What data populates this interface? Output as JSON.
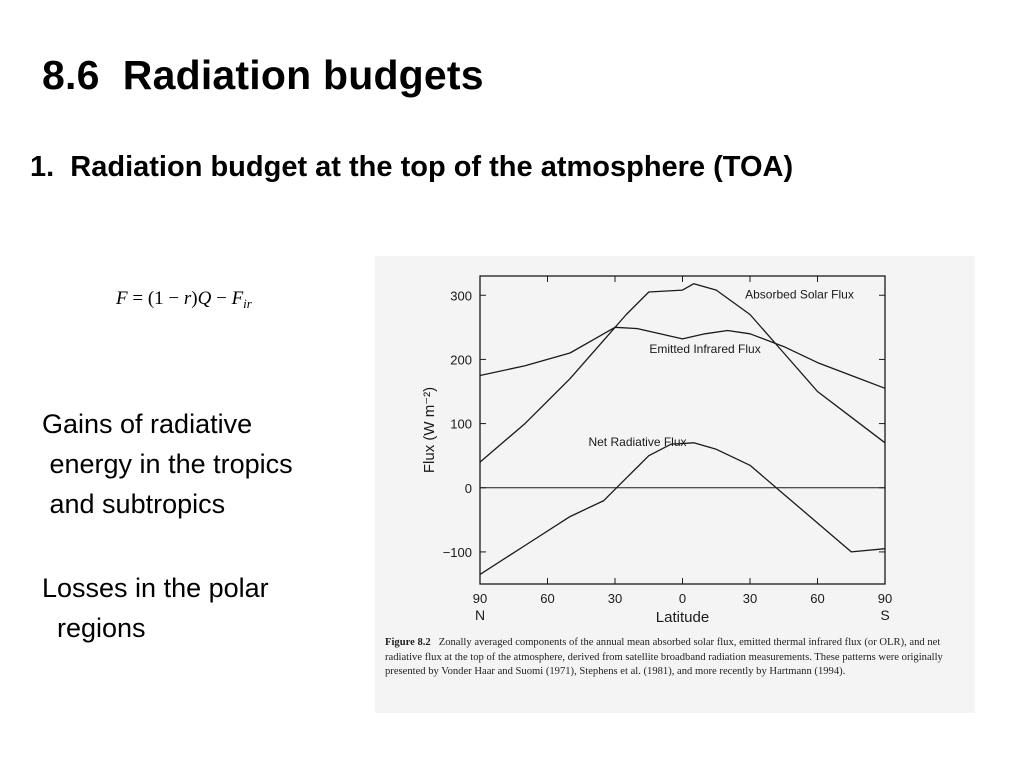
{
  "slide": {
    "title": "8.6  Radiation budgets",
    "subheading": "1.  Radiation budget at the top of the atmosphere (TOA)",
    "equation": {
      "lhs": "F",
      "eq": " = (1",
      "minus1": " − ",
      "r": "r",
      "paren": ")",
      "q": "Q",
      "minus2": " − ",
      "f": "F",
      "sub": "ir"
    },
    "bullets": {
      "gains": [
        "Gains of radiative",
        " energy in the tropics",
        " and subtropics"
      ],
      "losses": [
        "Losses in the polar",
        "  regions"
      ]
    }
  },
  "figure": {
    "label": "Figure 8.2",
    "caption": "Zonally averaged components of the annual mean absorbed solar flux, emitted thermal infrared flux (or OLR), and net radiative flux at the top of the atmosphere, derived from satellite broadband radiation measurements. These patterns were originally presented by Vonder Haar and Suomi (1971), Stephens et al. (1981), and more recently by Hartmann (1994)."
  },
  "colors": {
    "line": "#1a1a1a",
    "figure_bg": "#f4f4f4"
  },
  "chart_data": {
    "type": "line",
    "xlabel": "Latitude",
    "ylabel": "Flux (W m⁻²)",
    "xlim": [
      -90,
      90
    ],
    "ylim": [
      -150,
      330
    ],
    "xticks": [
      -90,
      -60,
      -30,
      0,
      30,
      60,
      90
    ],
    "xtick_labels": [
      "90",
      "60",
      "30",
      "0",
      "30",
      "60",
      "90"
    ],
    "yticks": [
      -100,
      0,
      100,
      200,
      300
    ],
    "ytick_labels": [
      "−100",
      "0",
      "100",
      "200",
      "300"
    ],
    "x_end_labels": {
      "left": "N",
      "right": "S"
    },
    "series": [
      {
        "name": "Absorbed Solar Flux",
        "x": [
          -90,
          -70,
          -50,
          -35,
          -25,
          -15,
          0,
          5,
          15,
          30,
          45,
          60,
          75,
          90
        ],
        "y": [
          40,
          100,
          170,
          230,
          270,
          305,
          308,
          318,
          308,
          270,
          210,
          150,
          110,
          70
        ]
      },
      {
        "name": "Emitted Infrared Flux",
        "x": [
          -90,
          -70,
          -50,
          -40,
          -30,
          -20,
          -10,
          0,
          10,
          20,
          30,
          45,
          60,
          75,
          90
        ],
        "y": [
          175,
          190,
          210,
          230,
          250,
          248,
          240,
          232,
          240,
          245,
          240,
          220,
          195,
          175,
          155
        ]
      },
      {
        "name": "Net Radiative Flux",
        "x": [
          -90,
          -70,
          -50,
          -35,
          -25,
          -15,
          -5,
          5,
          15,
          30,
          45,
          60,
          75,
          90
        ],
        "y": [
          -135,
          -90,
          -45,
          -20,
          15,
          50,
          68,
          70,
          60,
          35,
          -10,
          -55,
          -100,
          -95
        ]
      }
    ],
    "annotations": [
      {
        "text": "Absorbed Solar Flux",
        "x": 52,
        "y": 295
      },
      {
        "text": "Emitted Infrared Flux",
        "x": 10,
        "y": 210
      },
      {
        "text": "Net Radiative Flux",
        "x": -20,
        "y": 65
      }
    ],
    "zero_line": true,
    "grid": false,
    "legend": "none"
  }
}
